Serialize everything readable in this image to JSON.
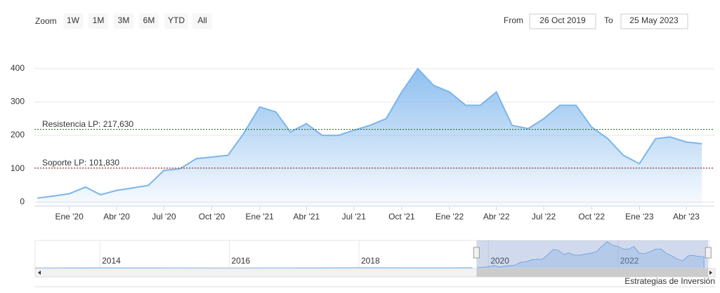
{
  "chart_data": {
    "type": "area",
    "range_selector": {
      "zoom_label": "Zoom",
      "buttons": [
        "1W",
        "1M",
        "3M",
        "6M",
        "YTD",
        "All"
      ],
      "from_label": "From",
      "from": "26 Oct 2019",
      "to_label": "To",
      "to": "25 May 2023"
    },
    "color": "#7cb5ec",
    "x": [
      "2019-11",
      "2019-12",
      "2020-01",
      "2020-02",
      "2020-03",
      "2020-04",
      "2020-05",
      "2020-06",
      "2020-07",
      "2020-08",
      "2020-09",
      "2020-10",
      "2020-11",
      "2020-12",
      "2021-01",
      "2021-02",
      "2021-03",
      "2021-04",
      "2021-05",
      "2021-06",
      "2021-07",
      "2021-08",
      "2021-09",
      "2021-10",
      "2021-11",
      "2021-12",
      "2022-01",
      "2022-02",
      "2022-03",
      "2022-04",
      "2022-05",
      "2022-06",
      "2022-07",
      "2022-08",
      "2022-09",
      "2022-10",
      "2022-11",
      "2022-12",
      "2023-01",
      "2023-02",
      "2023-03",
      "2023-04",
      "2023-05"
    ],
    "values": [
      12,
      18,
      25,
      45,
      22,
      35,
      42,
      50,
      95,
      100,
      130,
      135,
      140,
      205,
      285,
      270,
      210,
      235,
      200,
      200,
      215,
      230,
      250,
      330,
      400,
      350,
      330,
      290,
      290,
      330,
      230,
      220,
      250,
      290,
      290,
      225,
      190,
      140,
      115,
      190,
      195,
      180,
      175
    ],
    "xlim": [
      "2019-10-26",
      "2023-05-25"
    ],
    "xticks": [
      {
        "value": "2020-01",
        "label": "Ene '20"
      },
      {
        "value": "2020-04",
        "label": "Abr '20"
      },
      {
        "value": "2020-07",
        "label": "Jul '20"
      },
      {
        "value": "2020-10",
        "label": "Oct '20"
      },
      {
        "value": "2021-01",
        "label": "Ene '21"
      },
      {
        "value": "2021-04",
        "label": "Abr '21"
      },
      {
        "value": "2021-07",
        "label": "Jul '21"
      },
      {
        "value": "2021-10",
        "label": "Oct '21"
      },
      {
        "value": "2022-01",
        "label": "Ene '22"
      },
      {
        "value": "2022-04",
        "label": "Abr '22"
      },
      {
        "value": "2022-07",
        "label": "Jul '22"
      },
      {
        "value": "2022-10",
        "label": "Oct '22"
      },
      {
        "value": "2023-01",
        "label": "Ene '23"
      },
      {
        "value": "2023-04",
        "label": "Abr '23"
      }
    ],
    "ylim": [
      -12,
      490
    ],
    "yticks": [
      0,
      100,
      200,
      300,
      400
    ],
    "grid": true,
    "plot_lines": [
      {
        "value": 217.63,
        "label": "Resistencia LP: 217,630",
        "color": "#1b5e20"
      },
      {
        "value": 101.83,
        "label": "Soporte LP: 101,830",
        "color": "#8b1a1a"
      }
    ],
    "navigator": {
      "xlim": [
        "2013-01",
        "2023-06"
      ],
      "ylim": [
        0,
        420
      ],
      "xticks": [
        {
          "value": "2014-01",
          "label": "2014"
        },
        {
          "value": "2016-01",
          "label": "2016"
        },
        {
          "value": "2018-01",
          "label": "2018"
        },
        {
          "value": "2020-01",
          "label": "2020"
        },
        {
          "value": "2022-01",
          "label": "2022"
        }
      ],
      "history": {
        "x": [
          "2013-01",
          "2014-01",
          "2015-01",
          "2016-01",
          "2017-01",
          "2018-01",
          "2019-01",
          "2019-10"
        ],
        "values": [
          8,
          10,
          9,
          7,
          9,
          12,
          10,
          12
        ]
      }
    },
    "credits": "Estrategias de Inversión"
  }
}
